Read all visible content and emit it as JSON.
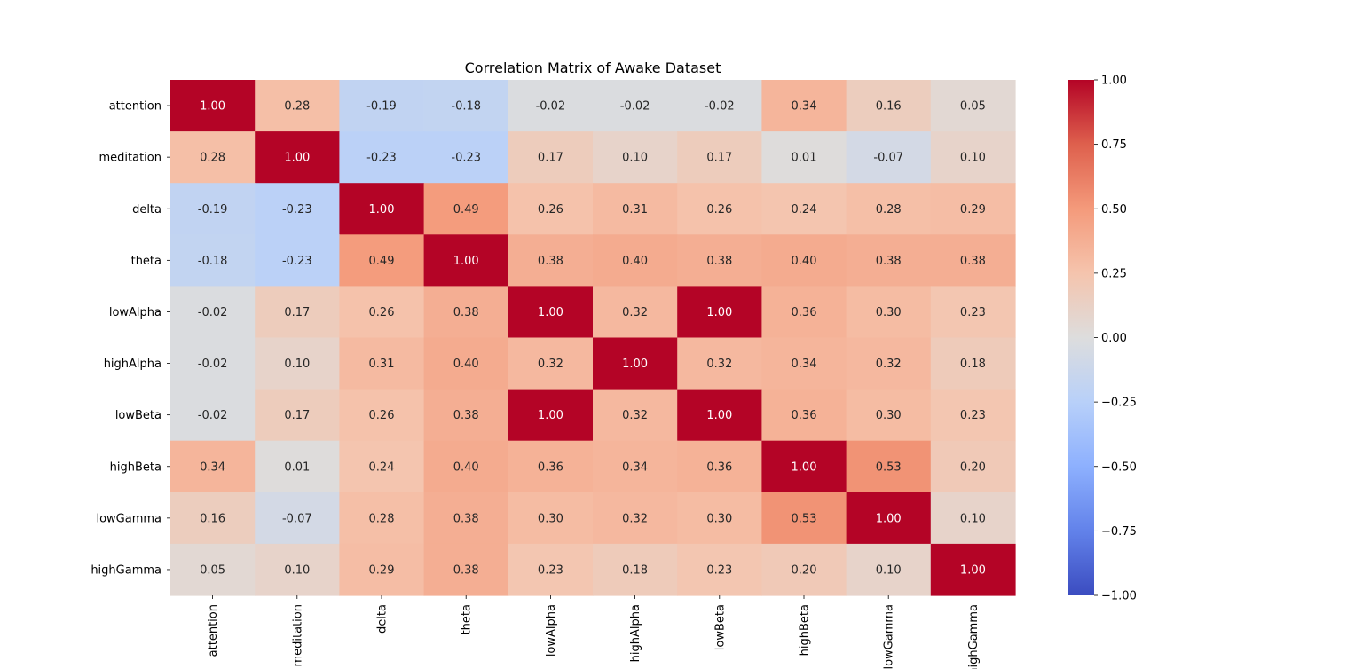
{
  "chart_data": {
    "type": "heatmap",
    "title": "Correlation Matrix of Awake Dataset",
    "row_labels": [
      "attention",
      "meditation",
      "delta",
      "theta",
      "lowAlpha",
      "highAlpha",
      "lowBeta",
      "highBeta",
      "lowGamma",
      "highGamma"
    ],
    "col_labels": [
      "attention",
      "meditation",
      "delta",
      "theta",
      "lowAlpha",
      "highAlpha",
      "lowBeta",
      "highBeta",
      "lowGamma",
      "highGamma"
    ],
    "values": [
      [
        1.0,
        0.28,
        -0.19,
        -0.18,
        -0.02,
        -0.02,
        -0.02,
        0.34,
        0.16,
        0.05
      ],
      [
        0.28,
        1.0,
        -0.23,
        -0.23,
        0.17,
        0.1,
        0.17,
        0.01,
        -0.07,
        0.1
      ],
      [
        -0.19,
        -0.23,
        1.0,
        0.49,
        0.26,
        0.31,
        0.26,
        0.24,
        0.28,
        0.29
      ],
      [
        -0.18,
        -0.23,
        0.49,
        1.0,
        0.38,
        0.4,
        0.38,
        0.4,
        0.38,
        0.38
      ],
      [
        -0.02,
        0.17,
        0.26,
        0.38,
        1.0,
        0.32,
        1.0,
        0.36,
        0.3,
        0.23
      ],
      [
        -0.02,
        0.1,
        0.31,
        0.4,
        0.32,
        1.0,
        0.32,
        0.34,
        0.32,
        0.18
      ],
      [
        -0.02,
        0.17,
        0.26,
        0.38,
        1.0,
        0.32,
        1.0,
        0.36,
        0.3,
        0.23
      ],
      [
        0.34,
        0.01,
        0.24,
        0.4,
        0.36,
        0.34,
        0.36,
        1.0,
        0.53,
        0.2
      ],
      [
        0.16,
        -0.07,
        0.28,
        0.38,
        0.3,
        0.32,
        0.3,
        0.53,
        1.0,
        0.1
      ],
      [
        0.05,
        0.1,
        0.29,
        0.38,
        0.23,
        0.18,
        0.23,
        0.2,
        0.1,
        1.0
      ]
    ],
    "value_format": "2 decimals",
    "colormap": "coolwarm",
    "vmin": -1.0,
    "vmax": 1.0,
    "colorbar_ticks": [
      "1.00",
      "0.75",
      "0.50",
      "0.25",
      "0.00",
      "−0.25",
      "−0.50",
      "−0.75",
      "−1.00"
    ],
    "colorbar_tick_values": [
      1.0,
      0.75,
      0.5,
      0.25,
      0.0,
      -0.25,
      -0.5,
      -0.75,
      -1.0
    ],
    "colorbar_position": "right",
    "grid": false,
    "colors": {
      "low": "#3b4cc0",
      "mid": "#dddddd",
      "high": "#b40426"
    }
  }
}
